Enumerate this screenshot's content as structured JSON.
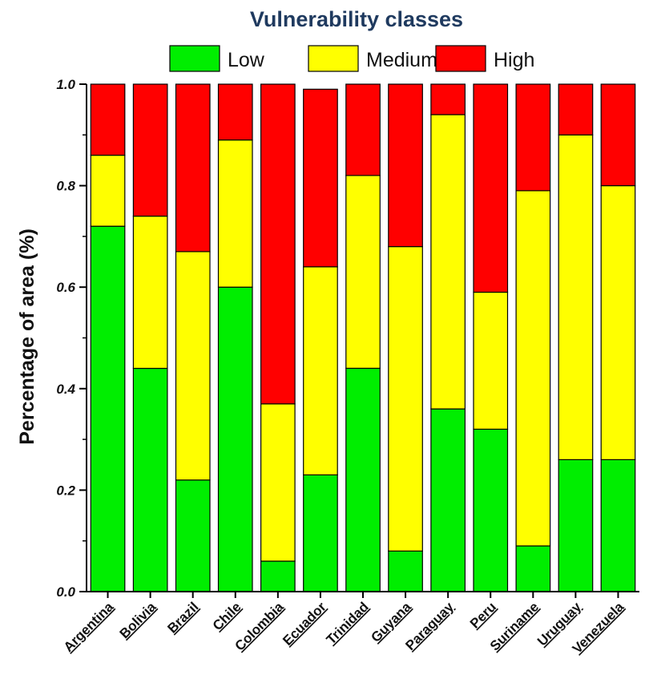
{
  "chart_data": {
    "type": "bar",
    "stacked": true,
    "categories": [
      "Argentina",
      "Bolivia",
      "Brazil",
      "Chile",
      "Colombia",
      "Ecuador",
      "Trinidad",
      "Guyana",
      "Paraguay",
      "Peru",
      "Suriname",
      "Uruguay",
      "Venezuela"
    ],
    "series": [
      {
        "name": "Low",
        "color": "#00ee00",
        "values": [
          0.72,
          0.44,
          0.22,
          0.6,
          0.06,
          0.23,
          0.44,
          0.08,
          0.36,
          0.32,
          0.09,
          0.26,
          0.26
        ]
      },
      {
        "name": "Medium",
        "color": "#ffff00",
        "values": [
          0.14,
          0.3,
          0.45,
          0.29,
          0.31,
          0.41,
          0.38,
          0.6,
          0.58,
          0.27,
          0.7,
          0.64,
          0.54
        ]
      },
      {
        "name": "High",
        "color": "#ff0000",
        "values": [
          0.14,
          0.26,
          0.33,
          0.11,
          0.63,
          0.35,
          0.18,
          0.32,
          0.06,
          0.41,
          0.21,
          0.1,
          0.2
        ]
      }
    ],
    "legend_title": "Vulnerability classes",
    "legend_position": "top",
    "ylabel": "Percentage of area (%)",
    "xlabel": "",
    "ylim": [
      0.0,
      1.0
    ],
    "yticks": [
      "0.0",
      "0.2",
      "0.4",
      "0.6",
      "0.8",
      "1.0"
    ],
    "grid": false
  }
}
